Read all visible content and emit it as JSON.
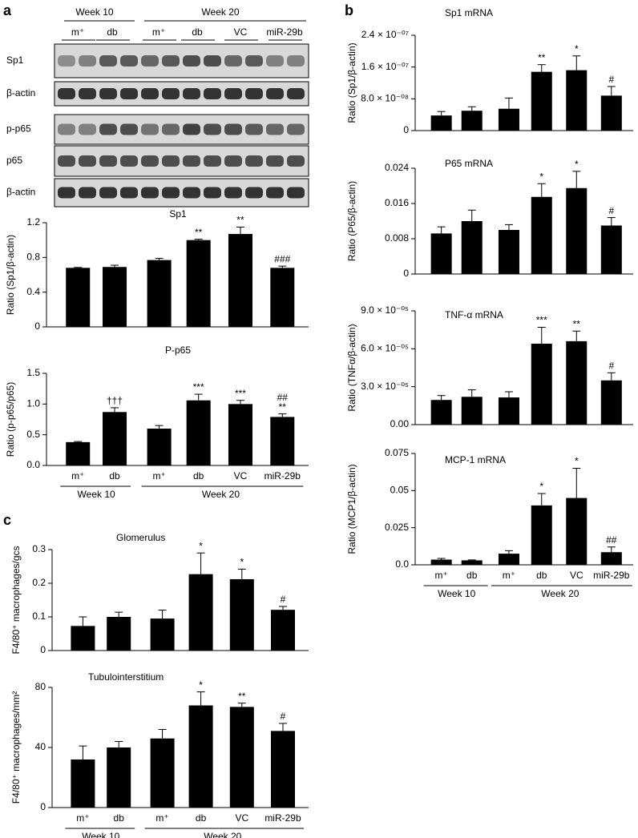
{
  "panels": [
    "a",
    "b",
    "c"
  ],
  "blot": {
    "week_labels": [
      "Week 10",
      "Week 20"
    ],
    "lane_labels": [
      "m⁺",
      "db",
      "m⁺",
      "db",
      "VC",
      "miR-29b"
    ],
    "rows": [
      "Sp1",
      "β-actin",
      "p-p65",
      "p65",
      "β-actin"
    ]
  },
  "chart_data": [
    {
      "type": "bar",
      "title": "Sp1",
      "ylabel": "Ratio (Sp1/β-actin)",
      "color": "#000000",
      "categories": [
        null,
        null,
        null,
        null,
        null,
        null
      ],
      "values": [
        0.68,
        0.69,
        0.77,
        1.0,
        1.07,
        0.68
      ],
      "errors": [
        0.005,
        0.02,
        0.02,
        0.01,
        0.08,
        0.02
      ],
      "markers": [
        [],
        [],
        [],
        [
          "**"
        ],
        [
          "**"
        ],
        [
          "###"
        ]
      ],
      "ylim": [
        0,
        1.2
      ],
      "yticks": [
        0,
        0.4,
        0.8,
        1.2
      ]
    },
    {
      "type": "bar",
      "title": "P-p65",
      "ylabel": "Ratio (p-p65/p65)",
      "color": "#000000",
      "categories": [
        "m⁺",
        "db",
        "m⁺",
        "db",
        "VC",
        "miR-29b"
      ],
      "groups": [
        "Week 10",
        "Week 20"
      ],
      "values": [
        0.38,
        0.87,
        0.6,
        1.06,
        1.0,
        0.79
      ],
      "errors": [
        0.01,
        0.07,
        0.05,
        0.1,
        0.06,
        0.05
      ],
      "markers": [
        [],
        [
          "†††"
        ],
        [],
        [
          "***"
        ],
        [
          "***"
        ],
        [
          "**",
          "##"
        ]
      ],
      "ylim": [
        0,
        1.5
      ],
      "yticks": [
        {
          "value": 0,
          "label": "0.0"
        },
        0.5,
        {
          "value": 1,
          "label": "1.0"
        },
        1.5
      ]
    },
    {
      "type": "bar",
      "title": "Sp1 mRNA",
      "ylabel": "Ratio (Sp1/β-actin)",
      "color": "#000000",
      "categories": [
        null,
        null,
        null,
        null,
        null,
        null
      ],
      "values": [
        3.8e-08,
        5e-08,
        5.5e-08,
        1.48e-07,
        1.52e-07,
        8.8e-08
      ],
      "errors": [
        1e-08,
        1e-08,
        2.7e-08,
        1.8e-08,
        3.6e-08,
        2.3e-08
      ],
      "markers": [
        [],
        [],
        [],
        [
          "**"
        ],
        [
          "*"
        ],
        [
          "#"
        ]
      ],
      "ylim": [
        0,
        2.4e-07
      ],
      "yticks": [
        0,
        {
          "value": 8e-08,
          "label": "8.0 × 10⁻⁰⁸"
        },
        {
          "value": 1.6e-07,
          "label": "1.6 × 10⁻⁰⁷"
        },
        {
          "value": 2.4e-07,
          "label": "2.4 × 10⁻⁰⁷"
        }
      ]
    },
    {
      "type": "bar",
      "title": "P65 mRNA",
      "ylabel": "Ratio (P65/β-actin)",
      "color": "#000000",
      "categories": [
        null,
        null,
        null,
        null,
        null,
        null
      ],
      "values": [
        0.0092,
        0.012,
        0.01,
        0.0175,
        0.0195,
        0.011
      ],
      "errors": [
        0.0015,
        0.0025,
        0.0012,
        0.003,
        0.0038,
        0.0018
      ],
      "markers": [
        [],
        [],
        [],
        [
          "*"
        ],
        [
          "*"
        ],
        [
          "#"
        ]
      ],
      "ylim": [
        0,
        0.024
      ],
      "yticks": [
        0,
        0.008,
        0.016,
        0.024
      ]
    },
    {
      "type": "bar",
      "title": "TNF-α mRNA",
      "ylabel": "Ratio (TNFα/β-actin)",
      "color": "#000000",
      "categories": [
        null,
        null,
        null,
        null,
        null,
        null
      ],
      "values": [
        1.95e-05,
        2.2e-05,
        2.15e-05,
        6.4e-05,
        6.6e-05,
        3.5e-05
      ],
      "errors": [
        3.5e-06,
        5.5e-06,
        4.5e-06,
        1.3e-05,
        8e-06,
        6e-06
      ],
      "markers": [
        [],
        [],
        [],
        [
          "***"
        ],
        [
          "**"
        ],
        [
          "#"
        ]
      ],
      "ylim": [
        0,
        9e-05
      ],
      "yticks": [
        {
          "value": 0,
          "label": "0.00"
        },
        {
          "value": 3e-05,
          "label": "3.0 × 10⁻⁰⁵"
        },
        {
          "value": 6e-05,
          "label": "6.0 × 10⁻⁰⁵"
        },
        {
          "value": 9e-05,
          "label": "9.0 × 10⁻⁰⁵"
        }
      ]
    },
    {
      "type": "bar",
      "title": "MCP-1 mRNA",
      "ylabel": "Ratio (MCP1/β-actin)",
      "color": "#000000",
      "categories": [
        "m⁺",
        "db",
        "m⁺",
        "db",
        "VC",
        "miR-29b"
      ],
      "groups": [
        "Week 10",
        "Week 20"
      ],
      "values": [
        0.0035,
        0.003,
        0.0075,
        0.04,
        0.045,
        0.0085
      ],
      "errors": [
        0.0008,
        0.0003,
        0.002,
        0.008,
        0.02,
        0.0035
      ],
      "markers": [
        [],
        [],
        [],
        [
          "*"
        ],
        [
          "*"
        ],
        [
          "##"
        ]
      ],
      "ylim": [
        0,
        0.075
      ],
      "yticks": [
        {
          "value": 0,
          "label": "0.0"
        },
        0.025,
        0.05,
        0.075
      ]
    },
    {
      "type": "bar",
      "title": "Glomerulus",
      "ylabel": "F4/80⁺ macrophages/gcs",
      "color": "#000000",
      "categories": [
        null,
        null,
        null,
        null,
        null,
        null
      ],
      "values": [
        0.073,
        0.1,
        0.095,
        0.227,
        0.212,
        0.121
      ],
      "errors": [
        0.027,
        0.014,
        0.025,
        0.063,
        0.03,
        0.01
      ],
      "markers": [
        [],
        [],
        [],
        [
          "*"
        ],
        [
          "*"
        ],
        [
          "#"
        ]
      ],
      "ylim": [
        0,
        0.3
      ],
      "yticks": [
        0,
        0.1,
        0.2,
        0.3
      ]
    },
    {
      "type": "bar",
      "title": "Tubulointerstitium",
      "ylabel": "F4/80⁺ macrophages/mm²",
      "color": "#000000",
      "categories": [
        "m⁺",
        "db",
        "m⁺",
        "db",
        "VC",
        "miR-29b"
      ],
      "groups": [
        "Week 10",
        "Week 20"
      ],
      "values": [
        32,
        40,
        46,
        68,
        67,
        51
      ],
      "errors": [
        9,
        4,
        6,
        9,
        2.5,
        5
      ],
      "markers": [
        [],
        [],
        [],
        [
          "*"
        ],
        [
          "**"
        ],
        [
          "#"
        ]
      ],
      "ylim": [
        0,
        80
      ],
      "yticks": [
        0,
        40,
        80
      ]
    }
  ]
}
